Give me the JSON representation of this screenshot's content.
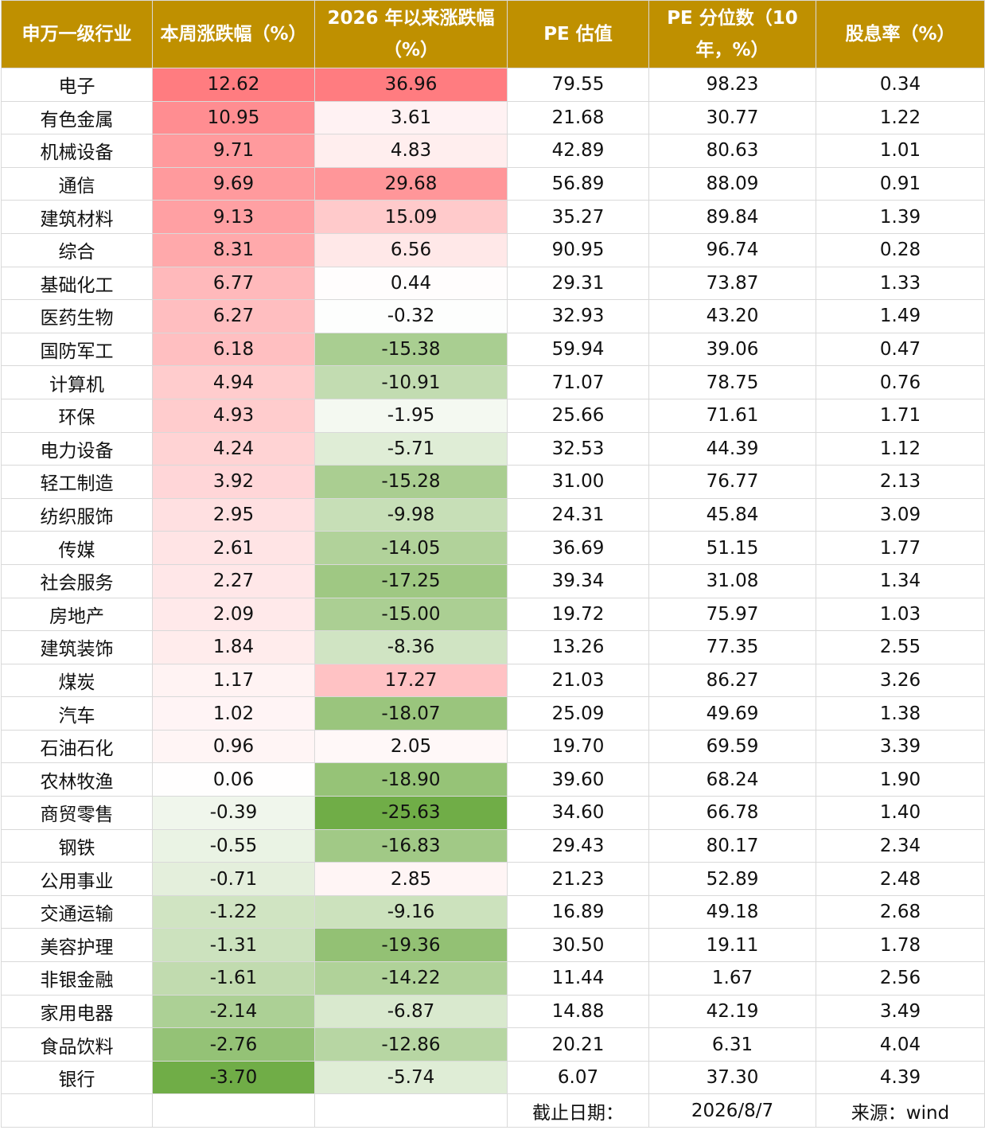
{
  "table": {
    "header": [
      "申万一级行业",
      "本周涨跌幅（%）",
      "2026 年以来涨跌幅（%）",
      "PE 估值",
      "PE 分位数（10年，%）",
      "股息率（%）"
    ],
    "rows": [
      [
        "电子",
        "12.62",
        "36.96",
        "79.55",
        "98.23",
        "0.34"
      ],
      [
        "有色金属",
        "10.95",
        "3.61",
        "21.68",
        "30.77",
        "1.22"
      ],
      [
        "机械设备",
        "9.71",
        "4.83",
        "42.89",
        "80.63",
        "1.01"
      ],
      [
        "通信",
        "9.69",
        "29.68",
        "56.89",
        "88.09",
        "0.91"
      ],
      [
        "建筑材料",
        "9.13",
        "15.09",
        "35.27",
        "89.84",
        "1.39"
      ],
      [
        "综合",
        "8.31",
        "6.56",
        "90.95",
        "96.74",
        "0.28"
      ],
      [
        "基础化工",
        "6.77",
        "0.44",
        "29.31",
        "73.87",
        "1.33"
      ],
      [
        "医药生物",
        "6.27",
        "-0.32",
        "32.93",
        "43.20",
        "1.49"
      ],
      [
        "国防军工",
        "6.18",
        "-15.38",
        "59.94",
        "39.06",
        "0.47"
      ],
      [
        "计算机",
        "4.94",
        "-10.91",
        "71.07",
        "78.75",
        "0.76"
      ],
      [
        "环保",
        "4.93",
        "-1.95",
        "25.66",
        "71.61",
        "1.71"
      ],
      [
        "电力设备",
        "4.24",
        "-5.71",
        "32.53",
        "44.39",
        "1.12"
      ],
      [
        "轻工制造",
        "3.92",
        "-15.28",
        "31.00",
        "76.77",
        "2.13"
      ],
      [
        "纺织服饰",
        "2.95",
        "-9.98",
        "24.31",
        "45.84",
        "3.09"
      ],
      [
        "传媒",
        "2.61",
        "-14.05",
        "36.69",
        "51.15",
        "1.77"
      ],
      [
        "社会服务",
        "2.27",
        "-17.25",
        "39.34",
        "31.08",
        "1.34"
      ],
      [
        "房地产",
        "2.09",
        "-15.00",
        "19.72",
        "75.97",
        "1.03"
      ],
      [
        "建筑装饰",
        "1.84",
        "-8.36",
        "13.26",
        "77.35",
        "2.55"
      ],
      [
        "煤炭",
        "1.17",
        "17.27",
        "21.03",
        "86.27",
        "3.26"
      ],
      [
        "汽车",
        "1.02",
        "-18.07",
        "25.09",
        "49.69",
        "1.38"
      ],
      [
        "石油石化",
        "0.96",
        "2.05",
        "19.70",
        "69.59",
        "3.39"
      ],
      [
        "农林牧渔",
        "0.06",
        "-18.90",
        "39.60",
        "68.24",
        "1.90"
      ],
      [
        "商贸零售",
        "-0.39",
        "-25.63",
        "34.60",
        "66.78",
        "1.40"
      ],
      [
        "钢铁",
        "-0.55",
        "-16.83",
        "29.43",
        "80.17",
        "2.34"
      ],
      [
        "公用事业",
        "-0.71",
        "2.85",
        "21.23",
        "52.89",
        "2.48"
      ],
      [
        "交通运输",
        "-1.22",
        "-9.16",
        "16.89",
        "49.18",
        "2.68"
      ],
      [
        "美容护理",
        "-1.31",
        "-19.36",
        "30.50",
        "19.11",
        "1.78"
      ],
      [
        "非银金融",
        "-1.61",
        "-14.22",
        "11.44",
        "1.67",
        "2.56"
      ],
      [
        "家用电器",
        "-2.14",
        "-6.87",
        "14.88",
        "42.19",
        "3.49"
      ],
      [
        "食品饮料",
        "-2.76",
        "-12.86",
        "20.21",
        "6.31",
        "4.04"
      ],
      [
        "银行",
        "-3.70",
        "-5.74",
        "6.07",
        "37.30",
        "4.39"
      ]
    ],
    "footer": {
      "date_label": "截止日期：",
      "date": "2026/8/7",
      "source": "来源：wind"
    }
  }
}
